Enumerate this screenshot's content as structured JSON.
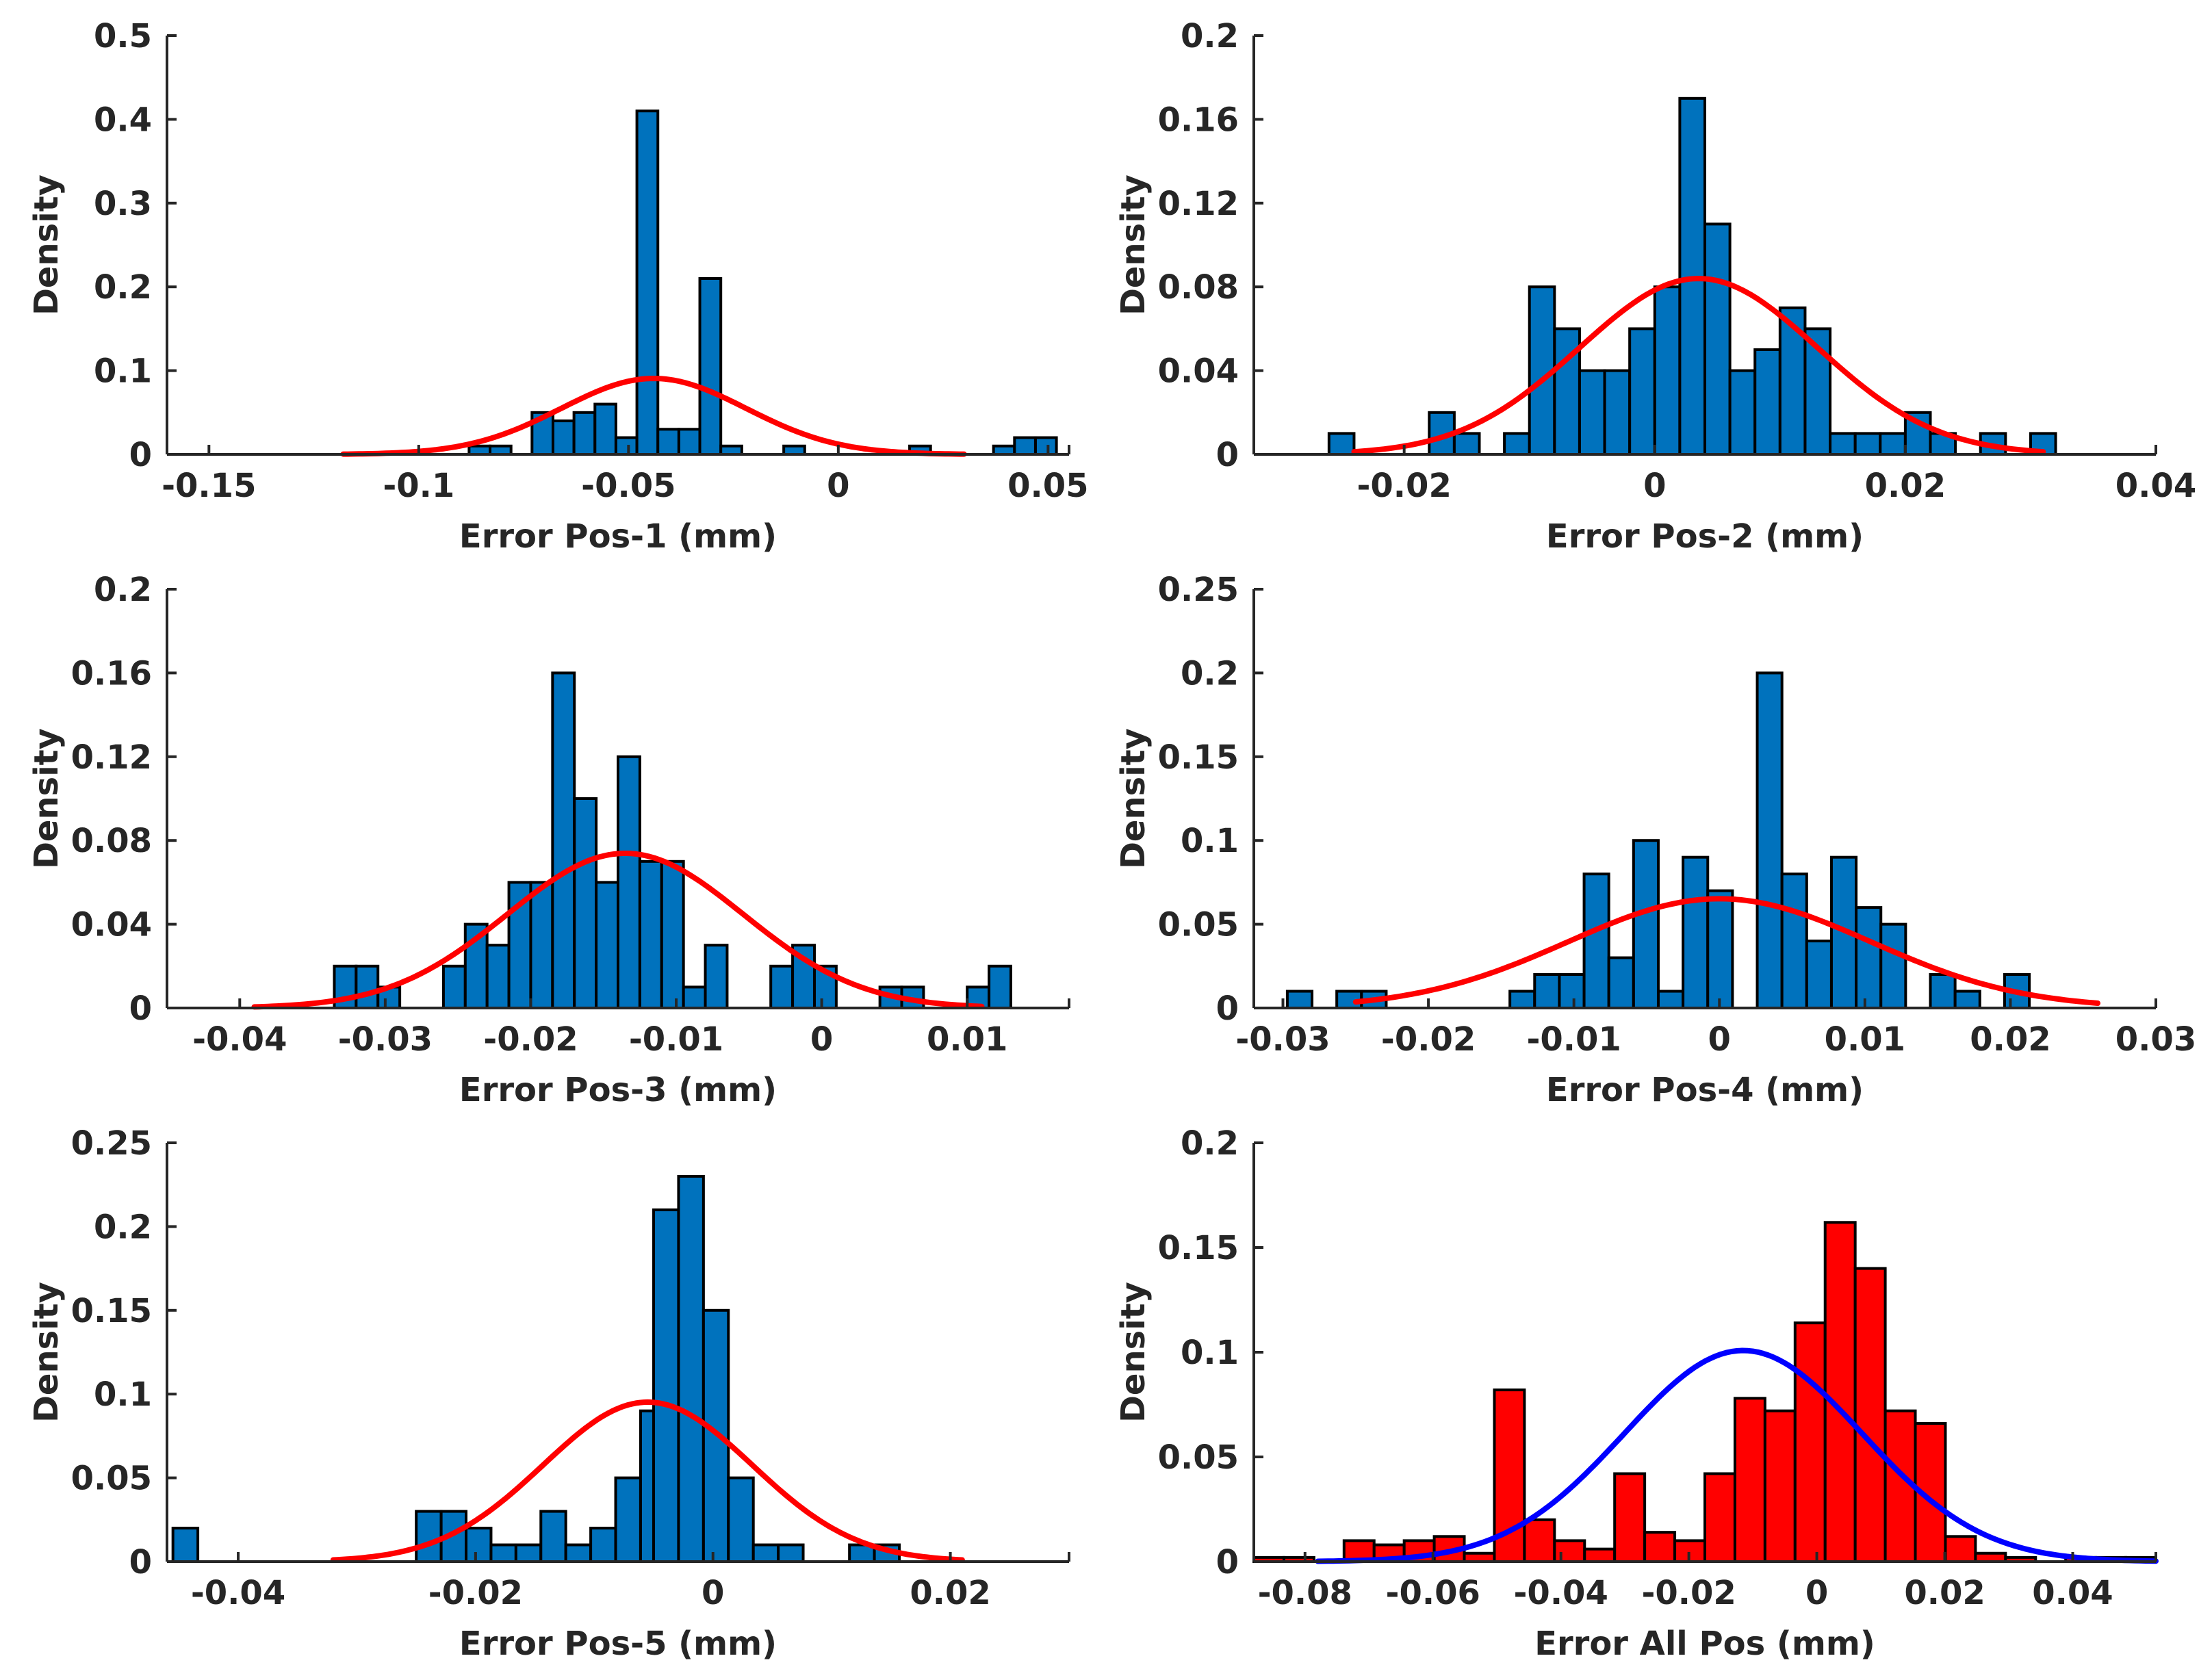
{
  "chart_data": [
    {
      "type": "bar",
      "title": "",
      "xlabel": "Error Pos-1 (mm)",
      "ylabel": "Density",
      "xlim": [
        -0.16,
        0.055
      ],
      "ylim": [
        0,
        0.5
      ],
      "xticks": [
        -0.15,
        -0.1,
        -0.05,
        0,
        0.05
      ],
      "xtick_labels": [
        "-0.15",
        "-0.1",
        "-0.05",
        "0",
        "0.05"
      ],
      "yticks": [
        0,
        0.1,
        0.2,
        0.3,
        0.4,
        0.5
      ],
      "ytick_labels": [
        "0",
        "0.1",
        "0.2",
        "0.3",
        "0.4",
        "0.5"
      ],
      "bin_width": 0.005,
      "bins": [
        {
          "start": -0.088,
          "value": 0.01
        },
        {
          "start": -0.083,
          "value": 0.01
        },
        {
          "start": -0.073,
          "value": 0.05
        },
        {
          "start": -0.068,
          "value": 0.04
        },
        {
          "start": -0.063,
          "value": 0.05
        },
        {
          "start": -0.058,
          "value": 0.06
        },
        {
          "start": -0.053,
          "value": 0.02
        },
        {
          "start": -0.048,
          "value": 0.41
        },
        {
          "start": -0.043,
          "value": 0.03
        },
        {
          "start": -0.038,
          "value": 0.03
        },
        {
          "start": -0.033,
          "value": 0.21
        },
        {
          "start": -0.028,
          "value": 0.01
        },
        {
          "start": -0.013,
          "value": 0.01
        },
        {
          "start": 0.017,
          "value": 0.01
        },
        {
          "start": 0.037,
          "value": 0.01
        },
        {
          "start": 0.042,
          "value": 0.02
        },
        {
          "start": 0.047,
          "value": 0.02
        }
      ],
      "bar_color": "#0072BD",
      "fit": {
        "mean": -0.044,
        "std": 0.022,
        "x_range": [
          -0.118,
          0.03
        ],
        "color": "#FF0000"
      }
    },
    {
      "type": "bar",
      "title": "",
      "xlabel": "Error Pos-2 (mm)",
      "ylabel": "Density",
      "xlim": [
        -0.032,
        0.04
      ],
      "ylim": [
        0,
        0.2
      ],
      "xticks": [
        -0.02,
        0,
        0.02,
        0.04
      ],
      "xtick_labels": [
        "-0.02",
        "0",
        "0.02",
        "0.04"
      ],
      "yticks": [
        0,
        0.04,
        0.08,
        0.12,
        0.16,
        0.2
      ],
      "ytick_labels": [
        "0",
        "0.04",
        "0.08",
        "0.12",
        "0.16",
        "0.2"
      ],
      "bin_width": 0.002,
      "bins": [
        {
          "start": -0.026,
          "value": 0.01
        },
        {
          "start": -0.018,
          "value": 0.02
        },
        {
          "start": -0.016,
          "value": 0.01
        },
        {
          "start": -0.012,
          "value": 0.01
        },
        {
          "start": -0.01,
          "value": 0.08
        },
        {
          "start": -0.008,
          "value": 0.06
        },
        {
          "start": -0.006,
          "value": 0.04
        },
        {
          "start": -0.004,
          "value": 0.04
        },
        {
          "start": -0.002,
          "value": 0.06
        },
        {
          "start": 0.0,
          "value": 0.08
        },
        {
          "start": 0.002,
          "value": 0.17
        },
        {
          "start": 0.004,
          "value": 0.11
        },
        {
          "start": 0.006,
          "value": 0.04
        },
        {
          "start": 0.008,
          "value": 0.05
        },
        {
          "start": 0.01,
          "value": 0.07
        },
        {
          "start": 0.012,
          "value": 0.06
        },
        {
          "start": 0.014,
          "value": 0.01
        },
        {
          "start": 0.016,
          "value": 0.01
        },
        {
          "start": 0.018,
          "value": 0.01
        },
        {
          "start": 0.02,
          "value": 0.02
        },
        {
          "start": 0.022,
          "value": 0.01
        },
        {
          "start": 0.026,
          "value": 0.01
        },
        {
          "start": 0.03,
          "value": 0.01
        }
      ],
      "bar_color": "#0072BD",
      "fit": {
        "mean": 0.0035,
        "std": 0.0095,
        "x_range": [
          -0.024,
          0.031
        ],
        "color": "#FF0000"
      }
    },
    {
      "type": "bar",
      "title": "",
      "xlabel": "Error Pos-3 (mm)",
      "ylabel": "Density",
      "xlim": [
        -0.045,
        0.017
      ],
      "ylim": [
        0,
        0.2
      ],
      "xticks": [
        -0.04,
        -0.03,
        -0.02,
        -0.01,
        0,
        0.01
      ],
      "xtick_labels": [
        "-0.04",
        "-0.03",
        "-0.02",
        "-0.01",
        "0",
        "0.01"
      ],
      "yticks": [
        0,
        0.04,
        0.08,
        0.12,
        0.16,
        0.2
      ],
      "ytick_labels": [
        "0",
        "0.04",
        "0.08",
        "0.12",
        "0.16",
        "0.2"
      ],
      "bin_width": 0.0015,
      "bins": [
        {
          "start": -0.0335,
          "value": 0.02
        },
        {
          "start": -0.032,
          "value": 0.02
        },
        {
          "start": -0.0305,
          "value": 0.01
        },
        {
          "start": -0.026,
          "value": 0.02
        },
        {
          "start": -0.0245,
          "value": 0.04
        },
        {
          "start": -0.023,
          "value": 0.03
        },
        {
          "start": -0.0215,
          "value": 0.06
        },
        {
          "start": -0.02,
          "value": 0.06
        },
        {
          "start": -0.0185,
          "value": 0.16
        },
        {
          "start": -0.017,
          "value": 0.1
        },
        {
          "start": -0.0155,
          "value": 0.06
        },
        {
          "start": -0.014,
          "value": 0.12
        },
        {
          "start": -0.0125,
          "value": 0.07
        },
        {
          "start": -0.011,
          "value": 0.07
        },
        {
          "start": -0.0095,
          "value": 0.01
        },
        {
          "start": -0.008,
          "value": 0.03
        },
        {
          "start": -0.0035,
          "value": 0.02
        },
        {
          "start": -0.002,
          "value": 0.03
        },
        {
          "start": -0.0005,
          "value": 0.02
        },
        {
          "start": 0.004,
          "value": 0.01
        },
        {
          "start": 0.0055,
          "value": 0.01
        },
        {
          "start": 0.01,
          "value": 0.01
        },
        {
          "start": 0.0115,
          "value": 0.02
        }
      ],
      "bar_color": "#0072BD",
      "fit": {
        "mean": -0.0135,
        "std": 0.0081,
        "x_range": [
          -0.039,
          0.011
        ],
        "color": "#FF0000"
      }
    },
    {
      "type": "bar",
      "title": "",
      "xlabel": "Error Pos-4 (mm)",
      "ylabel": "Density",
      "xlim": [
        -0.032,
        0.03
      ],
      "ylim": [
        0,
        0.25
      ],
      "xticks": [
        -0.03,
        -0.02,
        -0.01,
        0,
        0.01,
        0.02,
        0.03
      ],
      "xtick_labels": [
        "-0.03",
        "-0.02",
        "-0.01",
        "0",
        "0.01",
        "0.02",
        "0.03"
      ],
      "yticks": [
        0,
        0.05,
        0.1,
        0.15,
        0.2,
        0.25
      ],
      "ytick_labels": [
        "0",
        "0.05",
        "0.1",
        "0.15",
        "0.2",
        "0.25"
      ],
      "bin_width": 0.0017,
      "bins": [
        {
          "start": -0.0297,
          "value": 0.01
        },
        {
          "start": -0.0263,
          "value": 0.01
        },
        {
          "start": -0.0246,
          "value": 0.01
        },
        {
          "start": -0.0144,
          "value": 0.01
        },
        {
          "start": -0.0127,
          "value": 0.02
        },
        {
          "start": -0.011,
          "value": 0.02
        },
        {
          "start": -0.0093,
          "value": 0.08
        },
        {
          "start": -0.0076,
          "value": 0.03
        },
        {
          "start": -0.0059,
          "value": 0.1
        },
        {
          "start": -0.0042,
          "value": 0.01
        },
        {
          "start": -0.0025,
          "value": 0.09
        },
        {
          "start": -0.0008,
          "value": 0.07
        },
        {
          "start": 0.0026,
          "value": 0.2
        },
        {
          "start": 0.0043,
          "value": 0.08
        },
        {
          "start": 0.006,
          "value": 0.04
        },
        {
          "start": 0.0077,
          "value": 0.09
        },
        {
          "start": 0.0094,
          "value": 0.06
        },
        {
          "start": 0.0111,
          "value": 0.05
        },
        {
          "start": 0.0145,
          "value": 0.02
        },
        {
          "start": 0.0162,
          "value": 0.01
        },
        {
          "start": 0.0196,
          "value": 0.02
        }
      ],
      "bar_color": "#0072BD",
      "fit": {
        "mean": 0.0,
        "std": 0.0104,
        "x_range": [
          -0.025,
          0.026
        ],
        "color": "#FF0000"
      }
    },
    {
      "type": "bar",
      "title": "",
      "xlabel": "Error Pos-5 (mm)",
      "ylabel": "Density",
      "xlim": [
        -0.046,
        0.03
      ],
      "ylim": [
        0,
        0.25
      ],
      "xticks": [
        -0.04,
        -0.02,
        0,
        0.02
      ],
      "xtick_labels": [
        "-0.04",
        "-0.02",
        "0",
        "0.02"
      ],
      "yticks": [
        0,
        0.05,
        0.1,
        0.15,
        0.2,
        0.25
      ],
      "ytick_labels": [
        "0",
        "0.05",
        "0.1",
        "0.15",
        "0.2",
        "0.25"
      ],
      "bin_width": 0.0021,
      "bins": [
        {
          "start": -0.0455,
          "value": 0.02
        },
        {
          "start": -0.025,
          "value": 0.03
        },
        {
          "start": -0.0229,
          "value": 0.03
        },
        {
          "start": -0.0208,
          "value": 0.02
        },
        {
          "start": -0.0187,
          "value": 0.01
        },
        {
          "start": -0.0166,
          "value": 0.01
        },
        {
          "start": -0.0145,
          "value": 0.03
        },
        {
          "start": -0.0124,
          "value": 0.01
        },
        {
          "start": -0.0103,
          "value": 0.02
        },
        {
          "start": -0.0082,
          "value": 0.05
        },
        {
          "start": -0.0061,
          "value": 0.09
        },
        {
          "start": -0.005,
          "value": 0.21
        },
        {
          "start": -0.0029,
          "value": 0.23
        },
        {
          "start": -0.0008,
          "value": 0.15
        },
        {
          "start": 0.0013,
          "value": 0.05
        },
        {
          "start": 0.0034,
          "value": 0.01
        },
        {
          "start": 0.0055,
          "value": 0.01
        },
        {
          "start": 0.0115,
          "value": 0.01
        },
        {
          "start": 0.0136,
          "value": 0.01
        }
      ],
      "bar_color": "#0072BD",
      "fit": {
        "mean": -0.0055,
        "std": 0.0088,
        "x_range": [
          -0.032,
          0.021
        ],
        "color": "#FF0000"
      }
    },
    {
      "type": "bar",
      "title": "",
      "xlabel": "Error All Pos (mm)",
      "ylabel": "Density",
      "xlim": [
        -0.088,
        0.053
      ],
      "ylim": [
        0,
        0.2
      ],
      "xticks": [
        -0.08,
        -0.06,
        -0.04,
        -0.02,
        0,
        0.02,
        0.04
      ],
      "xtick_labels": [
        "-0.08",
        "-0.06",
        "-0.04",
        "-0.02",
        "0",
        "0.02",
        "0.04"
      ],
      "yticks": [
        0,
        0.05,
        0.1,
        0.15,
        0.2
      ],
      "ytick_labels": [
        "0",
        "0.05",
        "0.1",
        "0.15",
        "0.2"
      ],
      "bin_width": 0.0047,
      "bins": [
        {
          "start": -0.088,
          "value": 0.002
        },
        {
          "start": -0.0833,
          "value": 0.002
        },
        {
          "start": -0.0739,
          "value": 0.01
        },
        {
          "start": -0.0692,
          "value": 0.008
        },
        {
          "start": -0.0645,
          "value": 0.01
        },
        {
          "start": -0.0598,
          "value": 0.012
        },
        {
          "start": -0.0551,
          "value": 0.004
        },
        {
          "start": -0.0504,
          "value": 0.082
        },
        {
          "start": -0.0457,
          "value": 0.02
        },
        {
          "start": -0.041,
          "value": 0.01
        },
        {
          "start": -0.0363,
          "value": 0.006
        },
        {
          "start": -0.0316,
          "value": 0.042
        },
        {
          "start": -0.0269,
          "value": 0.014
        },
        {
          "start": -0.0222,
          "value": 0.01
        },
        {
          "start": -0.0175,
          "value": 0.042
        },
        {
          "start": -0.0128,
          "value": 0.078
        },
        {
          "start": -0.0081,
          "value": 0.072
        },
        {
          "start": -0.0034,
          "value": 0.114
        },
        {
          "start": 0.0013,
          "value": 0.162
        },
        {
          "start": 0.006,
          "value": 0.14
        },
        {
          "start": 0.0107,
          "value": 0.072
        },
        {
          "start": 0.0154,
          "value": 0.066
        },
        {
          "start": 0.0201,
          "value": 0.012
        },
        {
          "start": 0.0248,
          "value": 0.004
        },
        {
          "start": 0.0295,
          "value": 0.002
        },
        {
          "start": 0.0389,
          "value": 0.002
        },
        {
          "start": 0.0436,
          "value": 0.002
        },
        {
          "start": 0.0483,
          "value": 0.002
        }
      ],
      "bar_color": "#FF0000",
      "fit": {
        "mean": -0.0115,
        "std": 0.0186,
        "x_range": [
          -0.078,
          0.053
        ],
        "color": "#0000FF"
      }
    }
  ]
}
